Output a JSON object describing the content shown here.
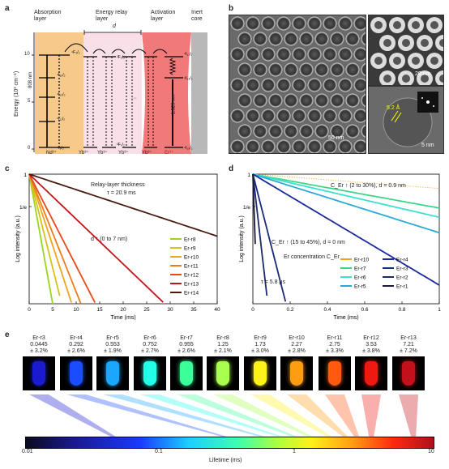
{
  "panel_a": {
    "label": "a",
    "layers": {
      "absorption": "Absorption layer",
      "relay": "Energy relay layer",
      "activation": "Activation layer",
      "inert": "Inert core"
    },
    "ylabel": "Energy (10³ cm⁻¹)",
    "yticks": [
      "0",
      "5",
      "10"
    ],
    "d_label": "d",
    "wavelength_808": "808 nm",
    "wavelength_1525": "1,525 nm",
    "ions": [
      "Nd³⁺",
      "Yb³⁺",
      "Yb³⁺",
      "Yb³⁺",
      "Yb³⁺",
      "Er³⁺"
    ],
    "levels_nd": [
      "⁴F₃/₂",
      "⁴I₁₅/₂",
      "⁴I₁₃/₂",
      "⁴I₁₁/₂",
      "⁴I₉/₂"
    ],
    "levels_yb": [
      "²F₅/₂",
      "²F₇/₂"
    ],
    "levels_er": [
      "⁴I₁₁/₂",
      "⁴I₁₃/₂",
      "⁴I₁₅/₂"
    ],
    "dots": "···"
  },
  "panel_b": {
    "label": "b",
    "scale_main": "50 nm",
    "scale_top": "20 nm",
    "scale_bottom": "5 nm",
    "lattice": "5.2 Å"
  },
  "panel_c": {
    "label": "c",
    "annotation_title": "Relay-layer thickness",
    "annotation_d": "d",
    "annotation_tau": "τ = 20.9 ms",
    "arrow_text": "d ↑ (0 to 7 nm)",
    "inv_e": "1/e"
  },
  "panel_d": {
    "label": "d",
    "annotation_1": "C_Er ↑ (2 to 30%), d = 0.9 nm",
    "annotation_2": "C_Er ↑ (15 to 45%), d = 0 nm",
    "annotation_tau": "τ = 5.8 μs",
    "er_conc": "Er concentration C_Er",
    "inv_e": "1/e"
  },
  "panel_e": {
    "label": "e",
    "samples": [
      {
        "name": "Er-r3",
        "value": "0.0445",
        "err": "± 3.2%",
        "color": "#1a1ad0"
      },
      {
        "name": "Er-r4",
        "value": "0.292",
        "err": "± 2.6%",
        "color": "#1a4dff"
      },
      {
        "name": "Er-r5",
        "value": "0.553",
        "err": "± 1.9%",
        "color": "#1aa7ff"
      },
      {
        "name": "Er-r6",
        "value": "0.752",
        "err": "± 2.7%",
        "color": "#24ffe8"
      },
      {
        "name": "Er-r7",
        "value": "0.955",
        "err": "± 2.6%",
        "color": "#3cff9a"
      },
      {
        "name": "Er-r8",
        "value": "1.25",
        "err": "± 2.1%",
        "color": "#a8ff4d"
      },
      {
        "name": "Er-r9",
        "value": "1.73",
        "err": "± 3.0%",
        "color": "#fff21a"
      },
      {
        "name": "Er-r10",
        "value": "2.27",
        "err": "± 2.8%",
        "color": "#ff9d12"
      },
      {
        "name": "Er-r11",
        "value": "2.75",
        "err": "± 3.3%",
        "color": "#ff5a10"
      },
      {
        "name": "Er-r12",
        "value": "3.53",
        "err": "± 3.8%",
        "color": "#ee1a10"
      },
      {
        "name": "Er-r13",
        "value": "7.21",
        "err": "± 7.2%",
        "color": "#c4101a"
      }
    ],
    "colorbar_ticks": [
      "0.01",
      "0.1",
      "1",
      "10"
    ],
    "colorbar_label": "Lifetime (ms)"
  },
  "chart_data": [
    {
      "type": "line",
      "panel": "c",
      "xlabel": "Time (ms)",
      "ylabel": "Log intensity (a.u.)",
      "xlim": [
        0,
        40
      ],
      "x_ticks": [
        0,
        5,
        10,
        15,
        20,
        25,
        30,
        35,
        40
      ],
      "yscale": "log",
      "y_ticks": [
        "1",
        "1/e"
      ],
      "legend_position": "right",
      "series": [
        {
          "name": "Er-r8",
          "tau_ms": 1.25,
          "color": "#9bd41c"
        },
        {
          "name": "Er-r9",
          "tau_ms": 1.73,
          "color": "#d5c21a"
        },
        {
          "name": "Er-r10",
          "tau_ms": 2.27,
          "color": "#f2a41a"
        },
        {
          "name": "Er-r11",
          "tau_ms": 2.75,
          "color": "#ee7b1a"
        },
        {
          "name": "Er-r12",
          "tau_ms": 3.53,
          "color": "#e84a1a"
        },
        {
          "name": "Er-r13",
          "tau_ms": 7.21,
          "color": "#c2141a"
        },
        {
          "name": "Er-r14",
          "tau_ms": 20.9,
          "color": "#4a1a10"
        }
      ]
    },
    {
      "type": "line",
      "panel": "d",
      "xlabel": "Time (ms)",
      "ylabel": "Log intensity (a.u.)",
      "xlim": [
        0,
        1.0
      ],
      "x_ticks": [
        0,
        0.2,
        0.4,
        0.6,
        0.8,
        1.0
      ],
      "yscale": "log",
      "y_ticks": [
        "1",
        "1/e"
      ],
      "legend_position": "bottom-right",
      "series": [
        {
          "name": "Er-r10",
          "tau_ms": 2.27,
          "color": "#f2a41a",
          "style": "dotted"
        },
        {
          "name": "Er-r7",
          "tau_ms": 0.955,
          "color": "#3cd68a"
        },
        {
          "name": "Er-r6",
          "tau_ms": 0.752,
          "color": "#3ce0d0"
        },
        {
          "name": "Er-r5",
          "tau_ms": 0.553,
          "color": "#2aa8d8"
        },
        {
          "name": "Er-r4",
          "tau_ms": 0.292,
          "color": "#1a2a9a"
        },
        {
          "name": "Er-r3",
          "tau_ms": 0.0445,
          "color": "#1a2a7a"
        },
        {
          "name": "Er-r2",
          "tau_ms": 0.02,
          "color": "#1a2a6a"
        },
        {
          "name": "Er-r1",
          "tau_ms": 0.0058,
          "color": "#1a1a3a"
        }
      ]
    }
  ]
}
